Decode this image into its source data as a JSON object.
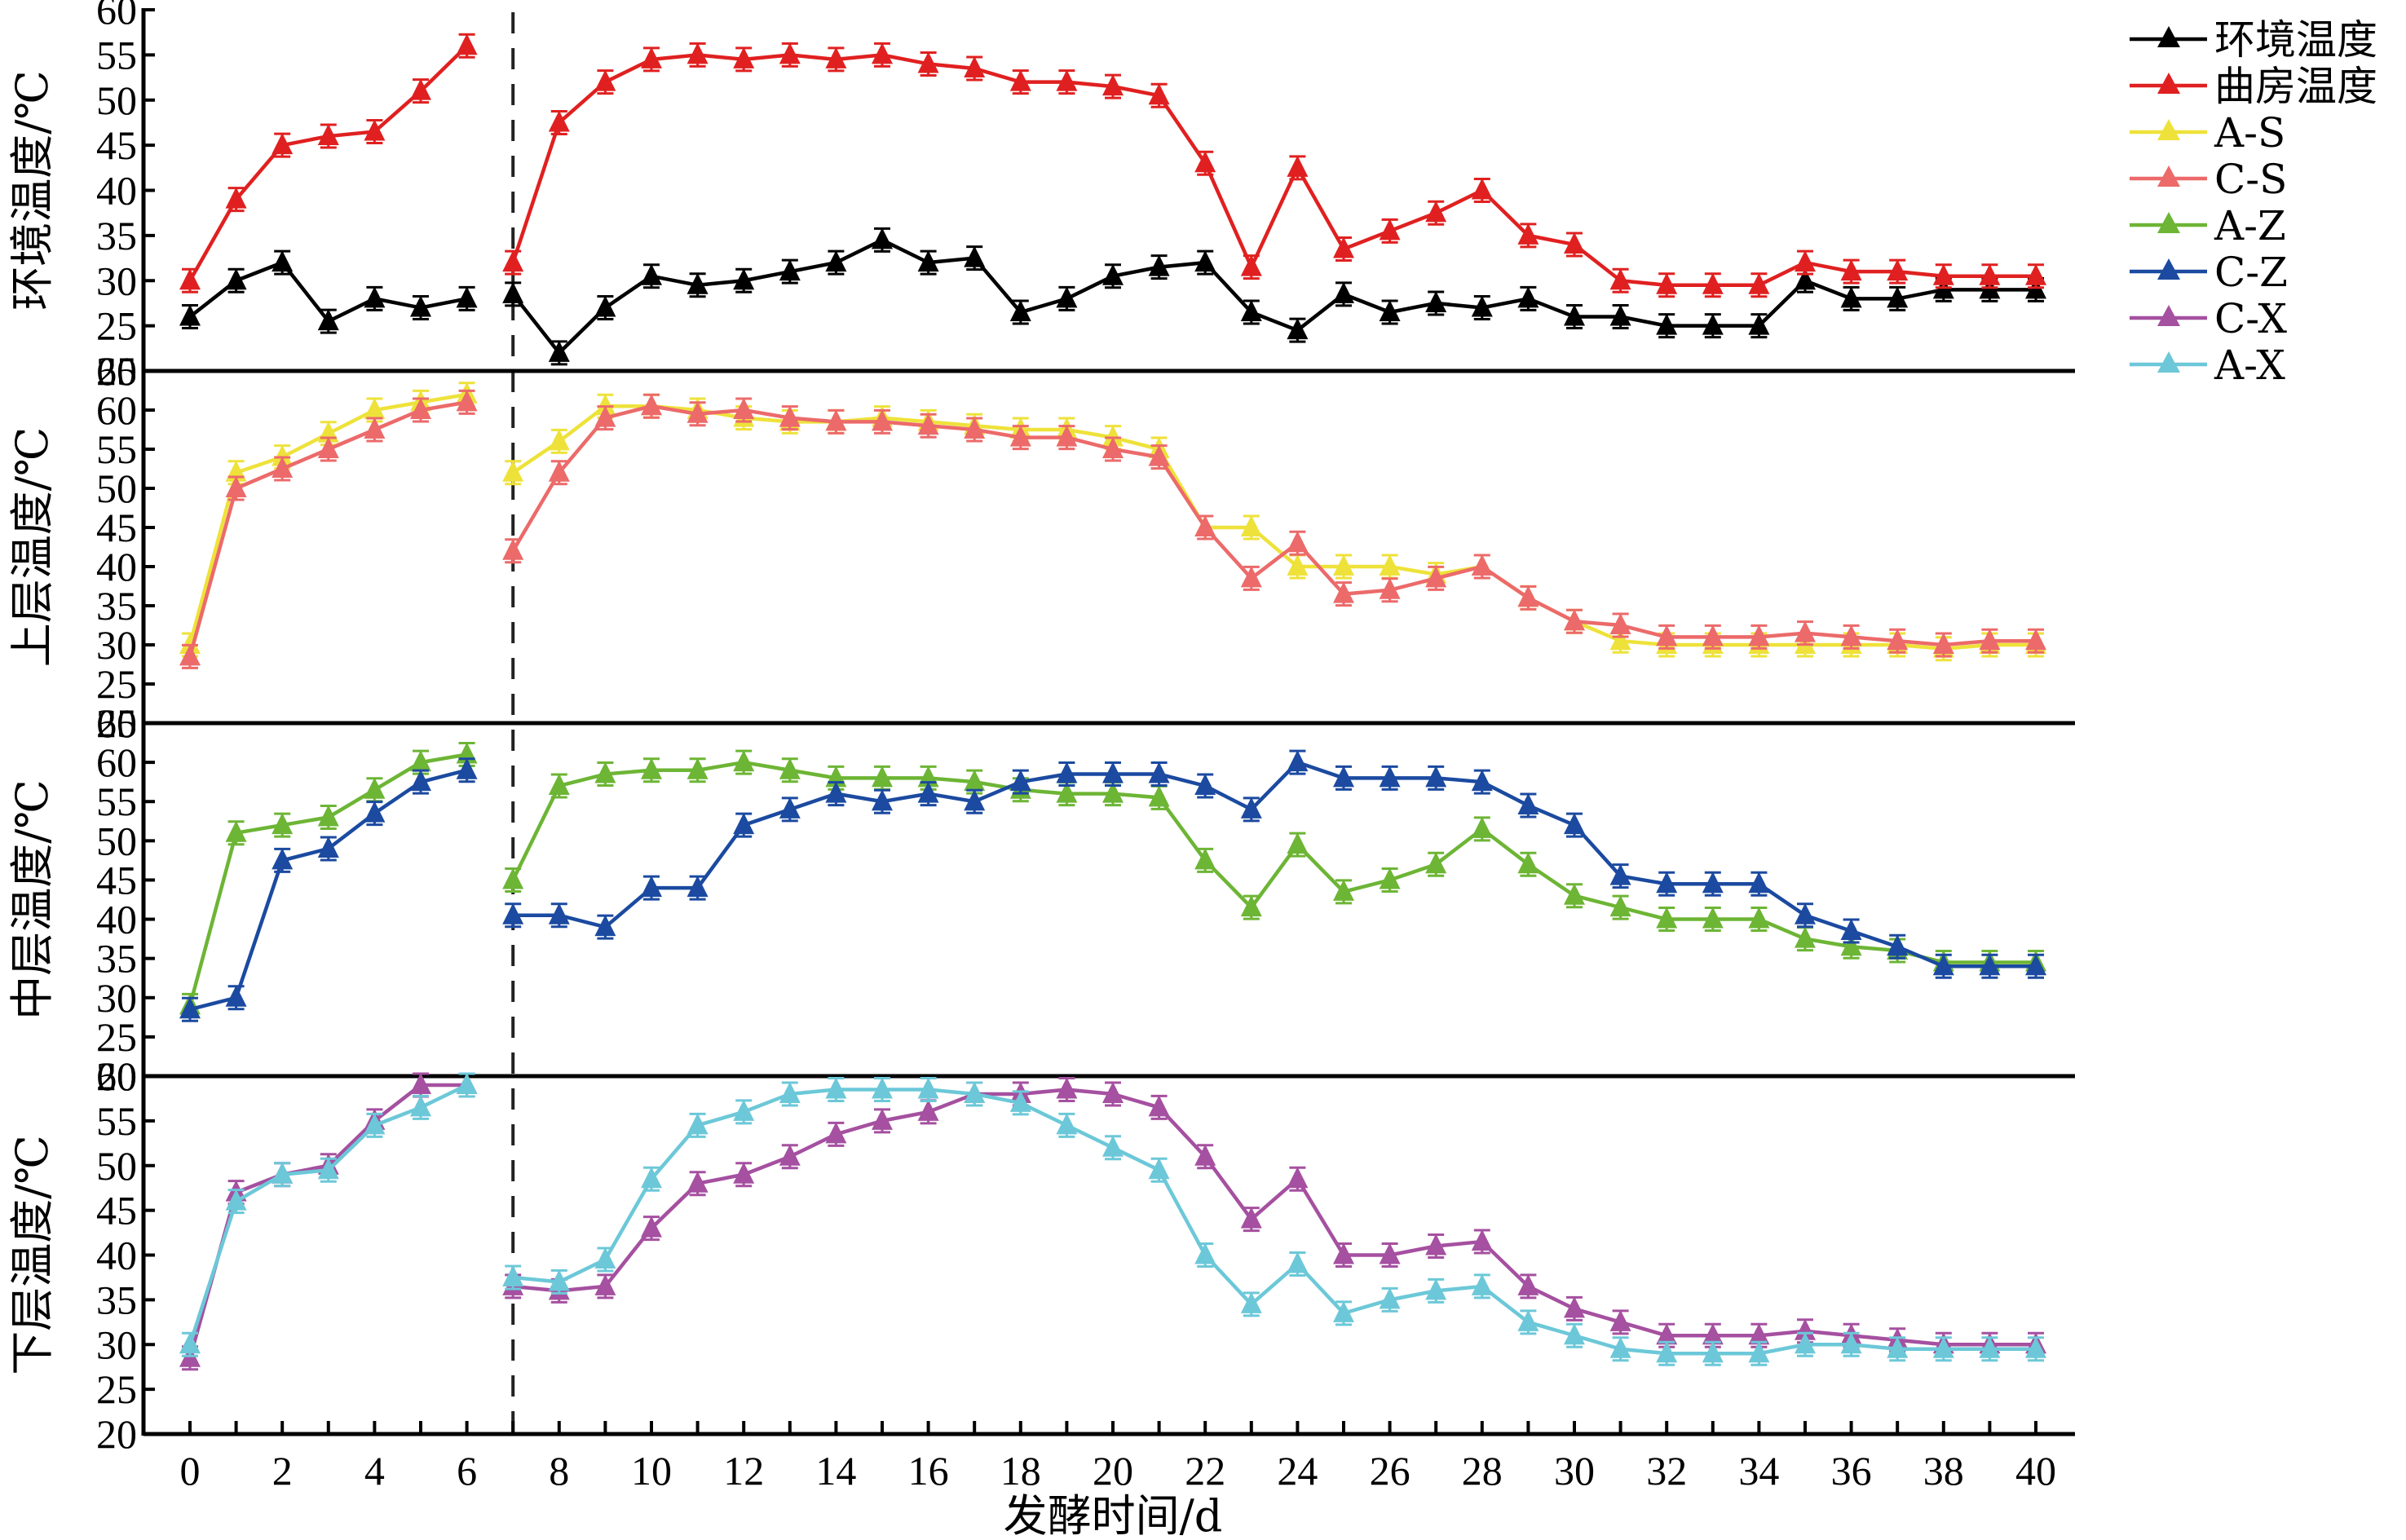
{
  "chart_data": {
    "type": "line",
    "xlabel": "发酵时间/d",
    "x_ticks": [
      0,
      2,
      4,
      6,
      8,
      10,
      12,
      14,
      16,
      18,
      20,
      22,
      24,
      26,
      28,
      30,
      32,
      34,
      36,
      38,
      40
    ],
    "xlim": [
      0,
      40
    ],
    "divider_day": 7,
    "days": [
      0,
      1,
      2,
      3,
      4,
      5,
      6,
      7,
      8,
      9,
      10,
      11,
      12,
      13,
      14,
      15,
      16,
      17,
      18,
      19,
      20,
      21,
      22,
      23,
      24,
      25,
      26,
      27,
      28,
      29,
      30,
      31,
      32,
      33,
      34,
      35,
      36,
      37,
      38,
      39,
      40
    ],
    "break_after_day": 6,
    "legend": [
      {
        "name": "环境温度",
        "color": "#000000"
      },
      {
        "name": "曲房温度",
        "color": "#e02020"
      },
      {
        "name": "A-S",
        "color": "#eee23a"
      },
      {
        "name": "C-S",
        "color": "#ec6a6a"
      },
      {
        "name": "A-Z",
        "color": "#6db535"
      },
      {
        "name": "C-Z",
        "color": "#1b4aa0"
      },
      {
        "name": "C-X",
        "color": "#a550a0"
      },
      {
        "name": "A-X",
        "color": "#6cc8d8"
      }
    ],
    "panels": [
      {
        "ylabel": "环境温度/℃",
        "ylim": [
          20,
          60
        ],
        "yticks": [
          20,
          25,
          30,
          35,
          40,
          45,
          50,
          55,
          60
        ],
        "series": [
          {
            "name": "环境温度",
            "color": "#000000",
            "values": [
              26,
              30,
              32,
              25.5,
              28,
              27,
              28,
              28.5,
              22,
              27,
              30.5,
              29.5,
              30,
              31,
              32,
              34.5,
              32,
              32.5,
              26.5,
              28,
              30.5,
              31.5,
              32,
              26.5,
              24.5,
              28.5,
              26.5,
              27.5,
              27,
              28,
              26,
              26,
              25,
              25,
              25,
              30,
              28,
              28,
              29,
              29,
              29
            ]
          },
          {
            "name": "曲房温度",
            "color": "#e02020",
            "values": [
              30,
              39,
              45,
              46,
              46.5,
              51,
              56,
              32,
              47.5,
              52,
              54.5,
              55,
              54.5,
              55,
              54.5,
              55,
              54,
              53.5,
              52,
              52,
              51.5,
              50.5,
              43,
              31.5,
              42.5,
              33.5,
              35.5,
              37.5,
              40,
              35,
              34,
              30,
              29.5,
              29.5,
              29.5,
              32,
              31,
              31,
              30.5,
              30.5,
              30.5
            ]
          }
        ]
      },
      {
        "ylabel": "上层温度/℃",
        "ylim": [
          20,
          65
        ],
        "yticks": [
          20,
          25,
          30,
          35,
          40,
          45,
          50,
          55,
          60,
          65
        ],
        "series": [
          {
            "name": "A-S",
            "color": "#eee23a",
            "values": [
              30,
              52,
              54,
              57,
              60,
              61,
              62,
              52,
              56,
              60.5,
              60.5,
              60,
              59,
              58.5,
              58.5,
              59,
              58.5,
              58,
              57.5,
              57.5,
              56.5,
              55,
              45,
              45,
              40,
              40,
              40,
              39,
              40,
              36,
              33,
              30.5,
              30,
              30,
              30,
              30,
              30,
              30,
              29.5,
              30,
              30
            ]
          },
          {
            "name": "C-S",
            "color": "#ec6a6a",
            "values": [
              28.5,
              50,
              52.5,
              55,
              57.5,
              60,
              61,
              42,
              52,
              59,
              60.5,
              59.5,
              60,
              59,
              58.5,
              58.5,
              58,
              57.5,
              56.5,
              56.5,
              55,
              54,
              45,
              38.5,
              43,
              36.5,
              37,
              38.5,
              40,
              36,
              33,
              32.5,
              31,
              31,
              31,
              31.5,
              31,
              30.5,
              30,
              30.5,
              30.5
            ]
          }
        ]
      },
      {
        "ylabel": "中层温度/℃",
        "ylim": [
          20,
          65
        ],
        "yticks": [
          20,
          25,
          30,
          35,
          40,
          45,
          50,
          55,
          60,
          65
        ],
        "series": [
          {
            "name": "A-Z",
            "color": "#6db535",
            "values": [
              29,
              51,
              52,
              53,
              56.5,
              60,
              61,
              45,
              57,
              58.5,
              59,
              59,
              60,
              59,
              58,
              58,
              58,
              57.5,
              56.5,
              56,
              56,
              55.5,
              47.5,
              41.5,
              49.5,
              43.5,
              45,
              47,
              51.5,
              47,
              43,
              41.5,
              40,
              40,
              40,
              37.5,
              36.5,
              36,
              34.5,
              34.5,
              34.5
            ]
          },
          {
            "name": "C-Z",
            "color": "#1b4aa0",
            "values": [
              28.5,
              30,
              47.5,
              49,
              53.5,
              57.5,
              59,
              40.5,
              40.5,
              39,
              44,
              44,
              52,
              54,
              56,
              55,
              56,
              55,
              57.5,
              58.5,
              58.5,
              58.5,
              57,
              54,
              60,
              58,
              58,
              58,
              57.5,
              54.5,
              52,
              45.5,
              44.5,
              44.5,
              44.5,
              40.5,
              38.5,
              36.5,
              34,
              34,
              34
            ]
          }
        ]
      },
      {
        "ylabel": "下层温度/℃",
        "ylim": [
          20,
          60
        ],
        "yticks": [
          20,
          25,
          30,
          35,
          40,
          45,
          50,
          55,
          60
        ],
        "series": [
          {
            "name": "C-X",
            "color": "#a550a0",
            "values": [
              28.5,
              47,
              49,
              50,
              55,
              59,
              59,
              36.5,
              36,
              36.5,
              43,
              48,
              49,
              51,
              53.5,
              55,
              56,
              58,
              58,
              58.5,
              58,
              56.5,
              51,
              44,
              48.5,
              40,
              40,
              41,
              41.5,
              36.5,
              34,
              32.5,
              31,
              31,
              31,
              31.5,
              31,
              30.5,
              30,
              30,
              30
            ]
          },
          {
            "name": "A-X",
            "color": "#6cc8d8",
            "values": [
              30,
              46,
              49,
              49.5,
              54.5,
              56.5,
              59,
              37.5,
              37,
              39.5,
              48.5,
              54.5,
              56,
              58,
              58.5,
              58.5,
              58.5,
              58,
              57,
              54.5,
              52,
              49.5,
              40,
              34.5,
              39,
              33.5,
              35,
              36,
              36.5,
              32.5,
              31,
              29.5,
              29,
              29,
              29,
              30,
              30,
              29.5,
              29.5,
              29.5,
              29.5
            ]
          }
        ]
      }
    ]
  }
}
